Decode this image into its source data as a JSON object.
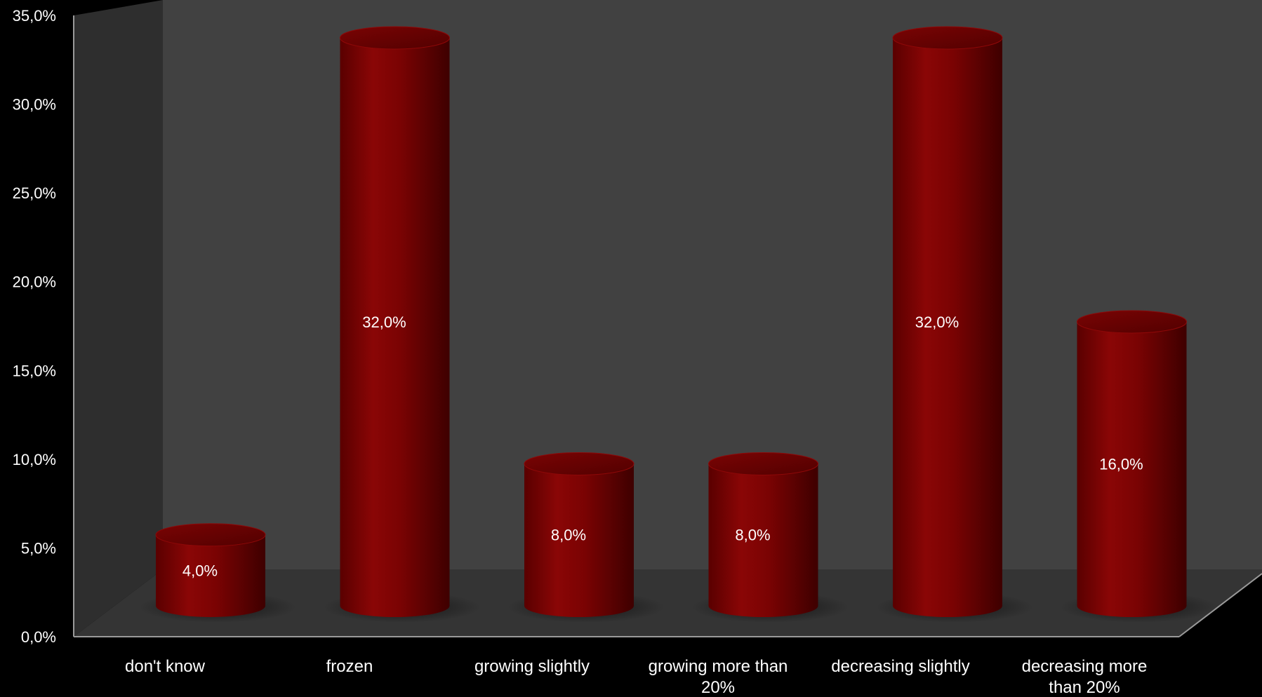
{
  "chart_data": {
    "type": "bar",
    "style": "3d-cylinder",
    "categories": [
      [
        "don't know"
      ],
      [
        "frozen"
      ],
      [
        "growing slightly"
      ],
      [
        "growing more than",
        "20%"
      ],
      [
        "decreasing slightly"
      ],
      [
        "decreasing more",
        "than 20%"
      ]
    ],
    "values": [
      4.0,
      32.0,
      8.0,
      8.0,
      32.0,
      16.0
    ],
    "data_labels": [
      "4,0%",
      "32,0%",
      "8,0%",
      "8,0%",
      "32,0%",
      "16,0%"
    ],
    "y_ticks": [
      "0,0%",
      "5,0%",
      "10,0%",
      "15,0%",
      "20,0%",
      "25,0%",
      "30,0%",
      "35,0%"
    ],
    "ylim": [
      0,
      35
    ],
    "grid": false,
    "legend": "none",
    "colors": {
      "bar": "#8b0000",
      "bar_dark": "#4a0000",
      "bar_top": "#6a0000",
      "back_wall": "#414141",
      "side_wall": "#2e2e2e",
      "floor": "#333333",
      "axis": "#9a9a9a",
      "text": "#ffffff"
    }
  }
}
